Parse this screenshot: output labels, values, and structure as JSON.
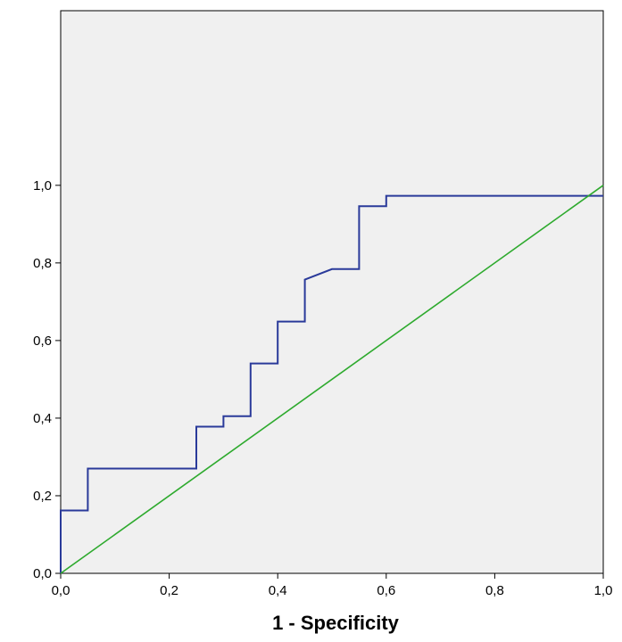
{
  "chart_data": {
    "type": "line",
    "title": "",
    "xlabel": "1 - Specificity",
    "ylabel": "",
    "xlim": [
      0,
      1
    ],
    "ylim": [
      0,
      1.45
    ],
    "grid": false,
    "x_ticks": [
      "0,0",
      "0,2",
      "0,4",
      "0,6",
      "0,8",
      "1,0"
    ],
    "y_ticks": [
      "0,0",
      "0,2",
      "0,4",
      "0,6",
      "0,8",
      "1,0"
    ],
    "series": [
      {
        "color": "#2a3a9a",
        "x": [
          0,
          0,
          0.05,
          0.05,
          0.25,
          0.25,
          0.3,
          0.3,
          0.35,
          0.35,
          0.4,
          0.4,
          0.45,
          0.45,
          0.5,
          0.55,
          0.55,
          0.6,
          0.6,
          1.0
        ],
        "y": [
          0,
          0.162,
          0.162,
          0.27,
          0.27,
          0.378,
          0.378,
          0.405,
          0.405,
          0.541,
          0.541,
          0.649,
          0.649,
          0.757,
          0.784,
          0.784,
          0.946,
          0.946,
          0.973,
          0.973
        ]
      },
      {
        "color": "#2eaa2e",
        "x": [
          0,
          1
        ],
        "y": [
          0,
          1
        ]
      }
    ],
    "background_color": "#f0f0f0"
  }
}
